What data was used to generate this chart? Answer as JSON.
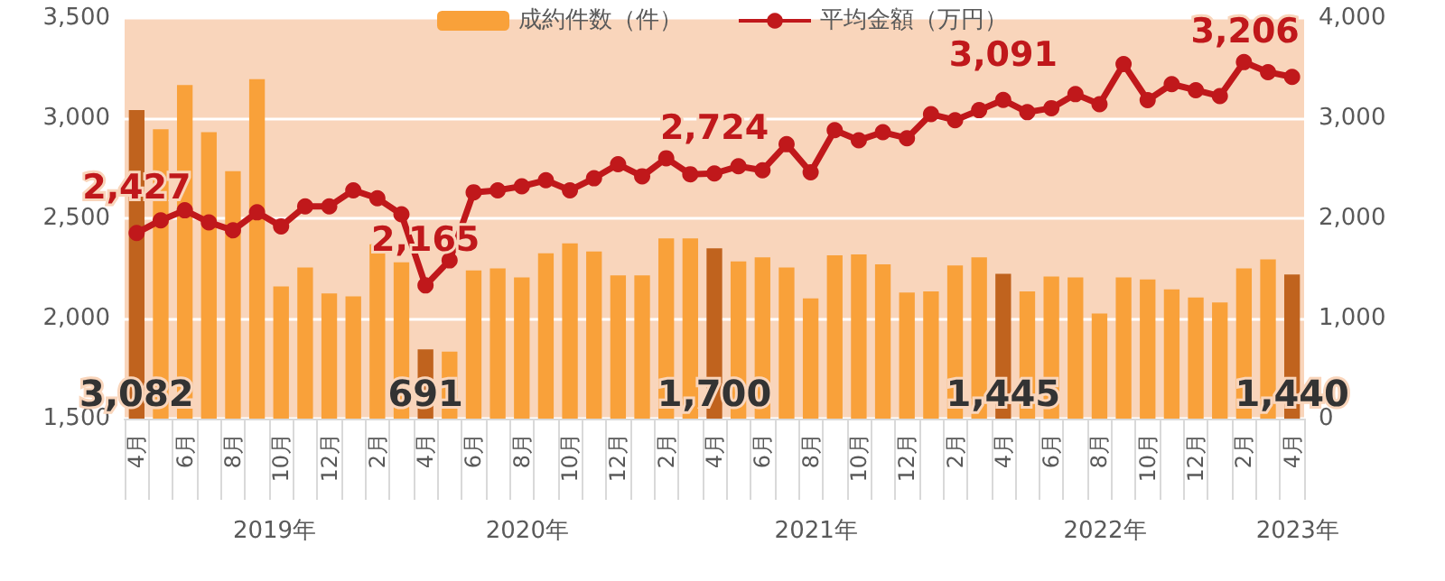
{
  "chart_data": {
    "type": "bar",
    "categories": [
      "4月",
      null,
      "6月",
      null,
      "8月",
      null,
      "10月",
      null,
      "12月",
      null,
      "2月",
      null,
      "4月",
      null,
      "6月",
      null,
      "8月",
      null,
      "10月",
      null,
      "12月",
      null,
      "2月",
      null,
      "4月",
      null,
      "6月",
      null,
      "8月",
      null,
      "10月",
      null,
      "12月",
      null,
      "2月",
      null,
      "4月",
      null,
      "6月",
      null,
      "8月",
      null,
      "10月",
      null,
      "12月",
      null,
      "2月",
      null,
      "4月"
    ],
    "annotations": [
      "2019年",
      "2020年",
      "2021年",
      "2022年",
      "2023年"
    ],
    "series": [
      {
        "name": "成約件数（件）",
        "axis": "y2",
        "color": "#f9a13a",
        "colors": [
          "#c0631e",
          "#f9a13a",
          "#f9a13a",
          "#f9a13a",
          "#f9a13a",
          "#f9a13a",
          "#f9a13a",
          "#f9a13a",
          "#f9a13a",
          "#f9a13a",
          "#f9a13a",
          "#f9a13a",
          "#c0631e",
          "#f9a13a",
          "#f9a13a",
          "#f9a13a",
          "#f9a13a",
          "#f9a13a",
          "#f9a13a",
          "#f9a13a",
          "#f9a13a",
          "#f9a13a",
          "#f9a13a",
          "#f9a13a",
          "#c0631e",
          "#f9a13a",
          "#f9a13a",
          "#f9a13a",
          "#f9a13a",
          "#f9a13a",
          "#f9a13a",
          "#f9a13a",
          "#f9a13a",
          "#f9a13a",
          "#f9a13a",
          "#f9a13a",
          "#c0631e",
          "#f9a13a",
          "#f9a13a",
          "#f9a13a",
          "#f9a13a",
          "#f9a13a",
          "#f9a13a",
          "#f9a13a",
          "#f9a13a",
          "#f9a13a",
          "#f9a13a",
          "#f9a13a",
          "#c0631e"
        ],
        "values": [
          3082,
          2890,
          3330,
          2860,
          2470,
          3390,
          1320,
          1510,
          1250,
          1220,
          1740,
          1560,
          691,
          670,
          1480,
          1500,
          1410,
          1650,
          1750,
          1670,
          1430,
          1430,
          1800,
          1800,
          1700,
          1570,
          1610,
          1510,
          1200,
          1630,
          1640,
          1540,
          1260,
          1270,
          1530,
          1610,
          1445,
          1270,
          1420,
          1410,
          1050,
          1410,
          1390,
          1290,
          1210,
          1160,
          1500,
          1590,
          1440
        ],
        "value_labels": [
          "3,082",
          null,
          null,
          null,
          null,
          null,
          null,
          null,
          null,
          null,
          null,
          null,
          "691",
          null,
          null,
          null,
          null,
          null,
          null,
          null,
          null,
          null,
          null,
          null,
          "1,700",
          null,
          null,
          null,
          null,
          null,
          null,
          null,
          null,
          null,
          null,
          null,
          "1,445",
          null,
          null,
          null,
          null,
          null,
          null,
          null,
          null,
          null,
          null,
          null,
          "1,440"
        ]
      },
      {
        "name": "平均金額（万円）",
        "type": "line",
        "color": "#c0181b",
        "values": [
          2427,
          2490,
          2540,
          2480,
          2440,
          2530,
          2460,
          2560,
          2560,
          2640,
          2600,
          2520,
          2165,
          2290,
          2630,
          2640,
          2660,
          2690,
          2640,
          2700,
          2770,
          2710,
          2800,
          2720,
          2724,
          2760,
          2740,
          2870,
          2730,
          2940,
          2890,
          2930,
          2900,
          3020,
          2990,
          3040,
          3091,
          3030,
          3050,
          3120,
          3070,
          3270,
          3090,
          3170,
          3140,
          3110,
          3280,
          3230,
          3206
        ],
        "value_labels": [
          "2,427",
          null,
          null,
          null,
          null,
          null,
          null,
          null,
          null,
          null,
          null,
          null,
          "2,165",
          null,
          null,
          null,
          null,
          null,
          null,
          null,
          null,
          null,
          null,
          null,
          "2,724",
          null,
          null,
          null,
          null,
          null,
          null,
          null,
          null,
          null,
          null,
          null,
          "3,091",
          null,
          null,
          null,
          null,
          null,
          null,
          null,
          null,
          null,
          null,
          null,
          "3,206"
        ]
      }
    ],
    "ylim": [
      1500,
      3500
    ],
    "yticks": [
      {
        "value": 1500,
        "label": "1,500"
      },
      {
        "value": 2000,
        "label": "2,000"
      },
      {
        "value": 2500,
        "label": "2,500"
      },
      {
        "value": 3000,
        "label": "3,000"
      },
      {
        "value": 3500,
        "label": "3,500"
      }
    ],
    "y2lim": [
      0,
      4000
    ],
    "y2ticks": [
      0,
      {
        "value": 1000,
        "label": "1,000"
      },
      {
        "value": 2000,
        "label": "2,000"
      },
      {
        "value": 3000,
        "label": "3,000"
      },
      {
        "value": 4000,
        "label": "4,000"
      }
    ],
    "grid": "y",
    "legend": "top",
    "marker": "circle",
    "line_style": "solid"
  }
}
